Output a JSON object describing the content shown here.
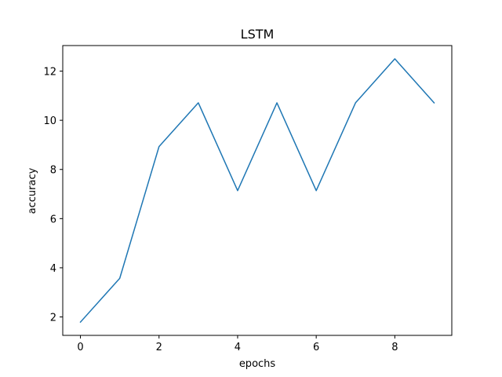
{
  "chart_data": {
    "type": "line",
    "title": "LSTM",
    "xlabel": "epochs",
    "ylabel": "accuracy",
    "x": [
      0,
      1,
      2,
      3,
      4,
      5,
      6,
      7,
      8,
      9
    ],
    "series": [
      {
        "values": [
          1.79,
          3.57,
          8.93,
          10.71,
          7.14,
          10.71,
          7.14,
          10.71,
          12.5,
          10.71
        ],
        "color": "#1f77b4"
      }
    ],
    "xlim": [
      -0.45,
      9.45
    ],
    "ylim": [
      1.25,
      13.04
    ],
    "xticks": [
      0,
      2,
      4,
      6,
      8
    ],
    "yticks": [
      2,
      4,
      6,
      8,
      10,
      12
    ],
    "grid": false,
    "legend": "none"
  }
}
